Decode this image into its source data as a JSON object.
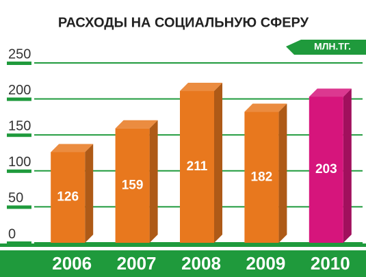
{
  "chart_data": {
    "type": "bar",
    "title": "РАСХОДЫ НА СОЦИАЛЬНУЮ СФЕРУ",
    "unit": "МЛН.ТГ.",
    "categories": [
      "2006",
      "2007",
      "2008",
      "2009",
      "2010"
    ],
    "values": [
      126,
      159,
      211,
      182,
      203
    ],
    "colors": [
      "#e8781e",
      "#e8781e",
      "#e8781e",
      "#e8781e",
      "#d6157c"
    ],
    "ylim": [
      0,
      250
    ],
    "yticks": [
      0,
      50,
      100,
      150,
      200,
      250
    ],
    "grid": true,
    "grid_color": "#1f9a3c"
  }
}
